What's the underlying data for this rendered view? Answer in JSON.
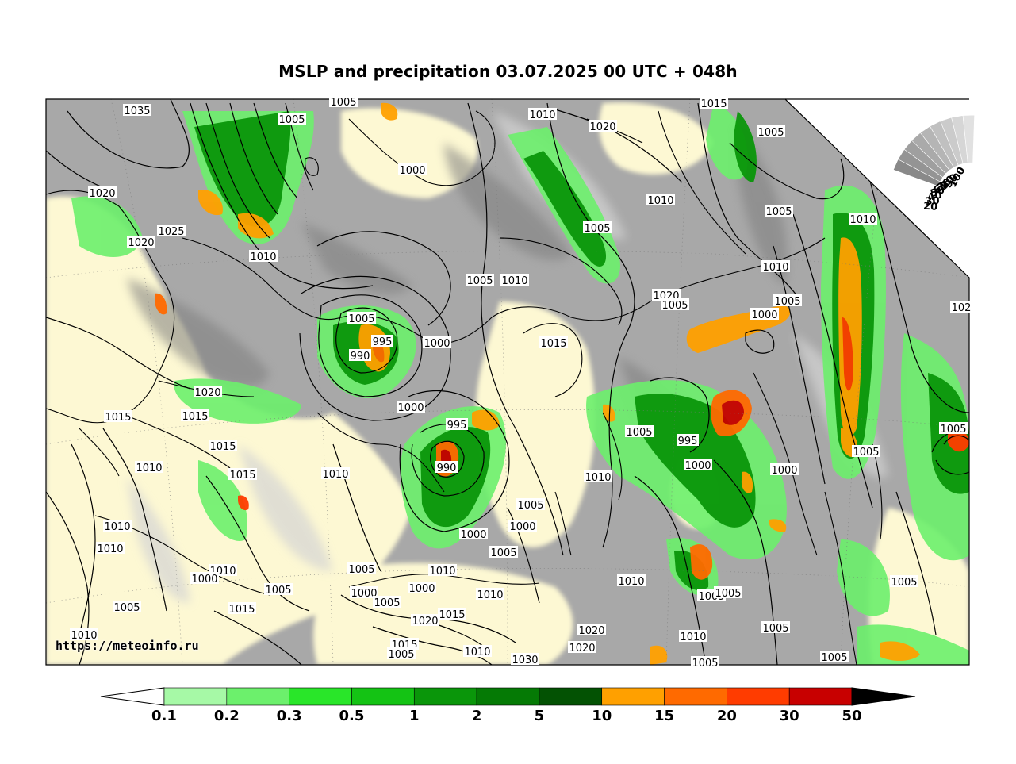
{
  "title": "MSLP and precipitation 03.07.2025 00 UTC + 048h",
  "watermark": "https://meteoinfo.ru",
  "colors": {
    "land": "#fdf8d3",
    "grey_dark": "#8c8c8c",
    "grey_mid": "#b0b0b0",
    "grey_light": "#d2d2d2",
    "isobar": "#000000",
    "coastline": "#000000"
  },
  "legend": {
    "labels": [
      "0.1",
      "0.2",
      "0.3",
      "0.5",
      "1",
      "2",
      "5",
      "10",
      "15",
      "20",
      "30",
      "50"
    ],
    "colors": [
      "#a6f9a6",
      "#6cf06c",
      "#29e629",
      "#14c314",
      "#0a960a",
      "#057a05",
      "#035203",
      "#ffa000",
      "#ff6a00",
      "#ff3c00",
      "#c80000",
      "#960a0a",
      "#000000"
    ],
    "unit_hint": "precipitation"
  },
  "cloud_scale": {
    "labels": [
      "100",
      "90",
      "80",
      "70",
      "60",
      "50",
      "40",
      "30",
      "20"
    ]
  },
  "isobar_labels": [
    {
      "text": "1035"
    },
    {
      "text": "1005"
    },
    {
      "text": "1005"
    },
    {
      "text": "1000"
    },
    {
      "text": "1010"
    },
    {
      "text": "1020"
    },
    {
      "text": "1015"
    },
    {
      "text": "1005"
    },
    {
      "text": "1020"
    },
    {
      "text": "1025"
    },
    {
      "text": "1020"
    },
    {
      "text": "1010"
    },
    {
      "text": "1005"
    },
    {
      "text": "1005"
    },
    {
      "text": "1010"
    },
    {
      "text": "1010"
    },
    {
      "text": "1010"
    },
    {
      "text": "1005"
    },
    {
      "text": "1005"
    },
    {
      "text": "1020"
    },
    {
      "text": "1010"
    },
    {
      "text": "1005"
    },
    {
      "text": "995"
    },
    {
      "text": "990"
    },
    {
      "text": "1000"
    },
    {
      "text": "1015"
    },
    {
      "text": "1000"
    },
    {
      "text": "1005"
    },
    {
      "text": "102"
    },
    {
      "text": "1020"
    },
    {
      "text": "1015"
    },
    {
      "text": "1015"
    },
    {
      "text": "1000"
    },
    {
      "text": "995"
    },
    {
      "text": "990"
    },
    {
      "text": "1015"
    },
    {
      "text": "1010"
    },
    {
      "text": "1015"
    },
    {
      "text": "1010"
    },
    {
      "text": "1005"
    },
    {
      "text": "995"
    },
    {
      "text": "1000"
    },
    {
      "text": "1010"
    },
    {
      "text": "1000"
    },
    {
      "text": "1005"
    },
    {
      "text": "1005"
    },
    {
      "text": "1010"
    },
    {
      "text": "1010"
    },
    {
      "text": "1005"
    },
    {
      "text": "1000"
    },
    {
      "text": "1000"
    },
    {
      "text": "1005"
    },
    {
      "text": "1005"
    },
    {
      "text": "1010"
    },
    {
      "text": "1010"
    },
    {
      "text": "1000"
    },
    {
      "text": "1005"
    },
    {
      "text": "1000"
    },
    {
      "text": "1000"
    },
    {
      "text": "1010"
    },
    {
      "text": "1015"
    },
    {
      "text": "1005"
    },
    {
      "text": "1020"
    },
    {
      "text": "1005"
    },
    {
      "text": "1015"
    },
    {
      "text": "1010"
    },
    {
      "text": "1030"
    },
    {
      "text": "1020"
    },
    {
      "text": "1020"
    },
    {
      "text": "1015"
    },
    {
      "text": "1005"
    },
    {
      "text": "1010"
    },
    {
      "text": "1005"
    },
    {
      "text": "1005"
    },
    {
      "text": "1005"
    },
    {
      "text": "1010"
    },
    {
      "text": "1005"
    },
    {
      "text": "1005"
    },
    {
      "text": "1010"
    },
    {
      "text": "1005"
    }
  ]
}
